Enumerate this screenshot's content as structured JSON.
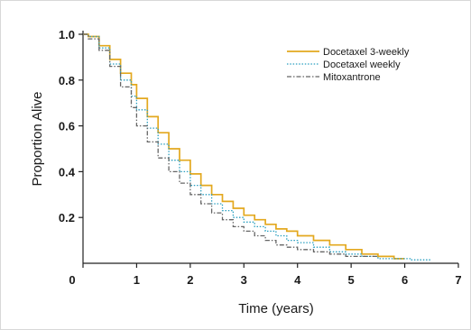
{
  "chart_data": {
    "type": "line",
    "title": "",
    "xlabel": "Time (years)",
    "ylabel": "Proportion Alive",
    "xlim": [
      0,
      7
    ],
    "ylim": [
      0,
      1.0
    ],
    "x_ticks": [
      "0",
      "1",
      "2",
      "3",
      "4",
      "5",
      "6",
      "7"
    ],
    "y_ticks": [
      "0.2",
      "0.4",
      "0.6",
      "0.8",
      "1.0"
    ],
    "grid": false,
    "legend_position": "top-right",
    "series": [
      {
        "name": "Docetaxel 3-weekly",
        "color": "#e3a81e",
        "dash": "solid",
        "x": [
          0.0,
          0.1,
          0.3,
          0.5,
          0.7,
          0.9,
          1.0,
          1.2,
          1.4,
          1.6,
          1.8,
          2.0,
          2.2,
          2.4,
          2.6,
          2.8,
          3.0,
          3.2,
          3.4,
          3.6,
          3.8,
          4.0,
          4.3,
          4.6,
          4.9,
          5.2,
          5.5,
          5.8,
          6.0
        ],
        "y": [
          1.0,
          0.99,
          0.95,
          0.89,
          0.83,
          0.78,
          0.72,
          0.64,
          0.57,
          0.5,
          0.45,
          0.39,
          0.34,
          0.3,
          0.27,
          0.24,
          0.21,
          0.19,
          0.17,
          0.15,
          0.14,
          0.12,
          0.1,
          0.08,
          0.06,
          0.04,
          0.03,
          0.02,
          0.02
        ]
      },
      {
        "name": "Docetaxel weekly",
        "color": "#2a9fc0",
        "dash": "dotted",
        "x": [
          0.0,
          0.1,
          0.3,
          0.5,
          0.7,
          0.9,
          1.0,
          1.2,
          1.4,
          1.6,
          1.8,
          2.0,
          2.2,
          2.4,
          2.6,
          2.8,
          3.0,
          3.2,
          3.4,
          3.6,
          3.8,
          4.0,
          4.3,
          4.6,
          4.9,
          5.2,
          5.5,
          5.8,
          6.1,
          6.5
        ],
        "y": [
          1.0,
          0.99,
          0.94,
          0.87,
          0.8,
          0.73,
          0.67,
          0.59,
          0.52,
          0.45,
          0.4,
          0.34,
          0.3,
          0.26,
          0.23,
          0.2,
          0.18,
          0.16,
          0.14,
          0.12,
          0.1,
          0.09,
          0.07,
          0.05,
          0.04,
          0.03,
          0.02,
          0.02,
          0.015,
          0.015
        ]
      },
      {
        "name": "Mitoxantrone",
        "color": "#666666",
        "dash": "dashdot",
        "x": [
          0.0,
          0.1,
          0.3,
          0.5,
          0.7,
          0.9,
          1.0,
          1.2,
          1.4,
          1.6,
          1.8,
          2.0,
          2.2,
          2.4,
          2.6,
          2.8,
          3.0,
          3.2,
          3.4,
          3.6,
          3.8,
          4.0,
          4.3,
          4.6,
          4.9,
          5.2,
          5.5
        ],
        "y": [
          1.0,
          0.98,
          0.93,
          0.86,
          0.77,
          0.68,
          0.6,
          0.53,
          0.46,
          0.4,
          0.35,
          0.3,
          0.26,
          0.22,
          0.19,
          0.16,
          0.14,
          0.12,
          0.1,
          0.08,
          0.07,
          0.06,
          0.05,
          0.04,
          0.03,
          0.03,
          0.03
        ]
      }
    ]
  }
}
